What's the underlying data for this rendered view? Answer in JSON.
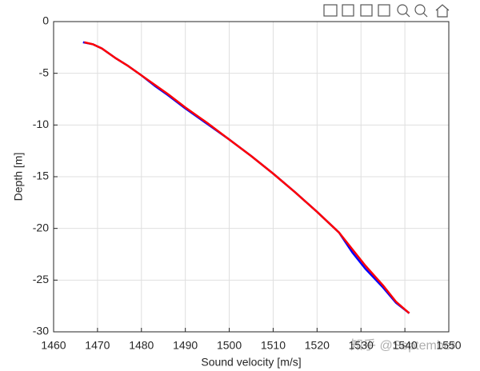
{
  "chart_data": {
    "type": "line",
    "xlabel": "Sound velocity [m/s]",
    "ylabel": "Depth [m]",
    "xlim": [
      1460,
      1550
    ],
    "xticks": [
      1460,
      1470,
      1480,
      1490,
      1500,
      1510,
      1520,
      1530,
      1540,
      1550
    ],
    "ylim": [
      -30,
      0
    ],
    "yticks": [
      -30,
      -25,
      -20,
      -15,
      -10,
      -5,
      0
    ],
    "grid": true,
    "series": [
      {
        "color": "#0000ff",
        "x": [
          1466.7,
          1469,
          1471,
          1474,
          1477,
          1480,
          1483,
          1486,
          1490,
          1495,
          1500,
          1505,
          1510,
          1515,
          1520,
          1525,
          1528,
          1531,
          1535,
          1538,
          1541
        ],
        "values": [
          -2,
          -2.2,
          -2.6,
          -3.5,
          -4.3,
          -5.2,
          -6.2,
          -7.1,
          -8.4,
          -9.9,
          -11.4,
          -13.0,
          -14.7,
          -16.5,
          -18.4,
          -20.4,
          -22.3,
          -23.9,
          -25.7,
          -27.2,
          -28.2
        ]
      },
      {
        "color": "#ff0000",
        "x": [
          1467,
          1469,
          1471,
          1474,
          1477,
          1480,
          1483,
          1486,
          1490,
          1495,
          1500,
          1505,
          1510,
          1515,
          1520,
          1525,
          1528,
          1531,
          1535,
          1538,
          1541
        ],
        "values": [
          -2,
          -2.2,
          -2.6,
          -3.5,
          -4.3,
          -5.2,
          -6.1,
          -7.0,
          -8.3,
          -9.8,
          -11.4,
          -13.0,
          -14.7,
          -16.5,
          -18.4,
          -20.4,
          -22.0,
          -23.6,
          -25.5,
          -27.1,
          -28.2
        ]
      }
    ],
    "watermark": "知乎 @September"
  }
}
